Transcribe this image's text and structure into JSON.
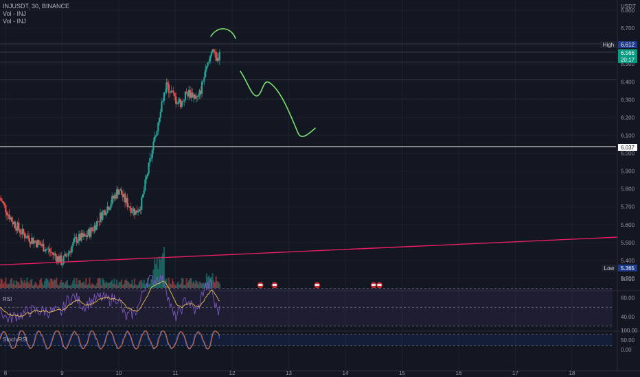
{
  "header": {
    "title": "INJUSDT, 30, BINANCE",
    "volume_legend_1": "Vol - INJ",
    "volume_legend_2": "Vol - INJ",
    "currency": "USDT"
  },
  "panes": {
    "rsi_title": "RSI",
    "stoch_title": "Stoch RSI"
  },
  "price_labels": {
    "high_tag": "High",
    "high_value": "6.612",
    "current_value": "6.566",
    "countdown": "20:17",
    "level_value": "6.037",
    "low_tag": "Low",
    "low_value": "5.365"
  },
  "colors": {
    "background": "#131722",
    "up": "#26a69a",
    "down": "#ef5350",
    "drawing_green": "#7ee06f",
    "trendline": "#e91e63",
    "rsi_line": "#7e57c2",
    "rsi_ma": "#f0c453",
    "stoch_k": "#2962ff",
    "stoch_d": "#ff6d00"
  },
  "chart_data": [
    {
      "type": "candlestick",
      "symbol": "INJUSDT",
      "timeframe": "30",
      "exchange": "BINANCE",
      "x_ticks": [
        "8",
        "9",
        "10",
        "11",
        "12",
        "13",
        "14",
        "15",
        "16",
        "17",
        "18"
      ],
      "y_ticks": [
        "5.300",
        "5.400",
        "5.500",
        "5.600",
        "5.700",
        "5.800",
        "5.900",
        "6.000",
        "6.100",
        "6.200",
        "6.300",
        "6.400",
        "6.500",
        "6.600",
        "6.700",
        "6.800"
      ],
      "ylim": [
        5.25,
        6.85
      ],
      "high": 6.612,
      "low": 5.365,
      "last": 6.566,
      "horizontal_levels": [
        6.612,
        6.566,
        6.51,
        6.41,
        6.305,
        6.037
      ],
      "trendline": {
        "from": {
          "x": 7.9,
          "y": 5.375
        },
        "to": {
          "x": 18.8,
          "y": 5.53
        }
      },
      "price_path": [
        [
          7.9,
          5.75
        ],
        [
          8.1,
          5.63
        ],
        [
          8.3,
          5.55
        ],
        [
          8.5,
          5.51
        ],
        [
          8.7,
          5.47
        ],
        [
          8.9,
          5.42
        ],
        [
          9.0,
          5.39
        ],
        [
          9.1,
          5.44
        ],
        [
          9.25,
          5.52
        ],
        [
          9.4,
          5.53
        ],
        [
          9.55,
          5.58
        ],
        [
          9.7,
          5.66
        ],
        [
          9.85,
          5.72
        ],
        [
          10.0,
          5.8
        ],
        [
          10.1,
          5.74
        ],
        [
          10.2,
          5.7
        ],
        [
          10.3,
          5.67
        ],
        [
          10.4,
          5.72
        ],
        [
          10.5,
          5.88
        ],
        [
          10.65,
          6.1
        ],
        [
          10.75,
          6.28
        ],
        [
          10.85,
          6.38
        ],
        [
          11.0,
          6.3
        ],
        [
          11.1,
          6.28
        ],
        [
          11.2,
          6.34
        ],
        [
          11.3,
          6.33
        ],
        [
          11.4,
          6.3
        ],
        [
          11.5,
          6.42
        ],
        [
          11.6,
          6.52
        ],
        [
          11.65,
          6.61
        ],
        [
          11.72,
          6.5
        ],
        [
          11.78,
          6.566
        ]
      ]
    },
    {
      "type": "line",
      "name": "RSI",
      "y_ticks": [
        "40.00",
        "60.00",
        "80.00"
      ],
      "ylim": [
        25,
        85
      ],
      "bands": [
        70,
        50,
        30
      ]
    },
    {
      "type": "line",
      "name": "Stoch RSI",
      "y_ticks": [
        "0.00",
        "50.00",
        "100.00"
      ],
      "ylim": [
        -12,
        112
      ],
      "bands": [
        80,
        20
      ]
    }
  ]
}
